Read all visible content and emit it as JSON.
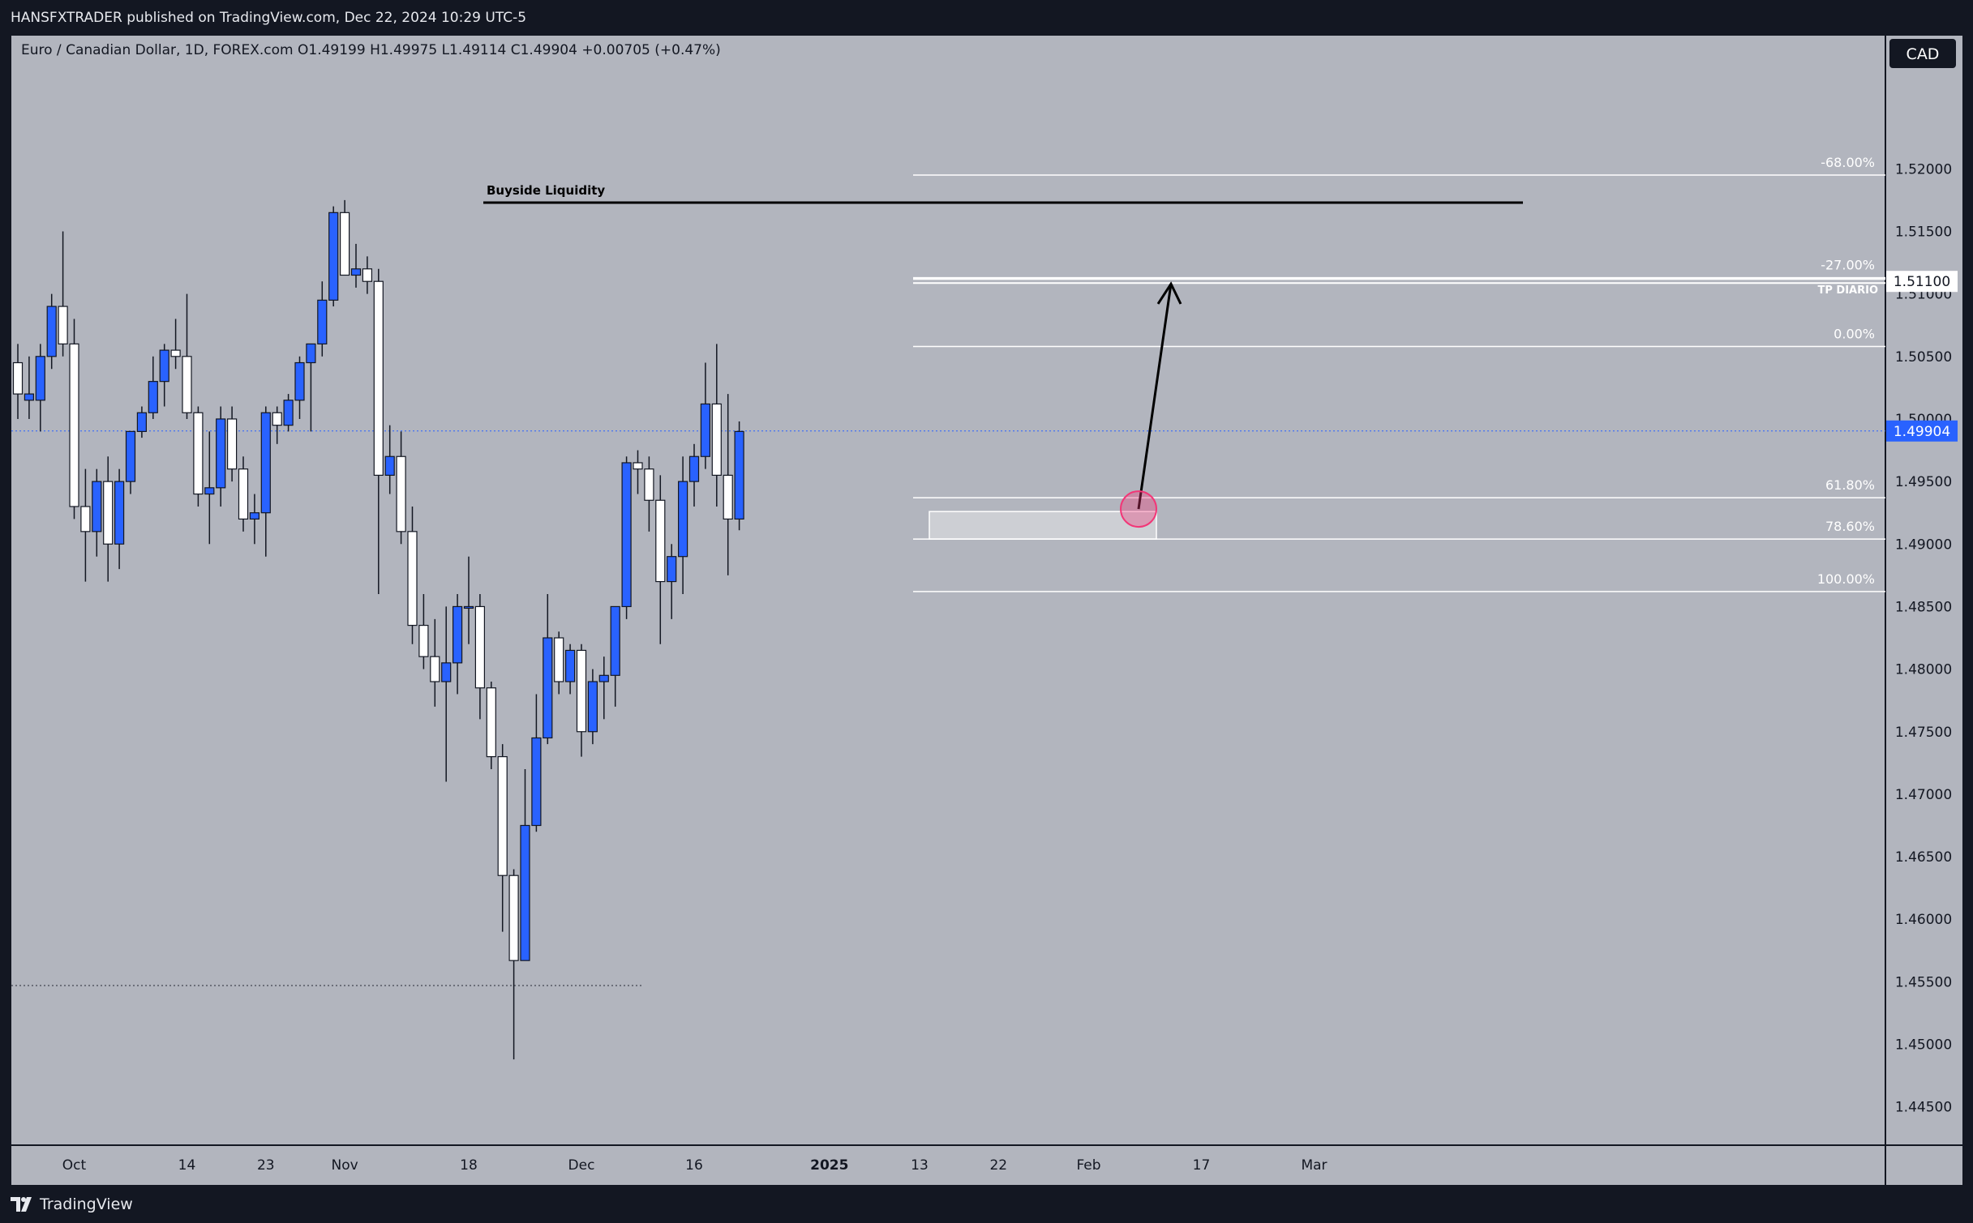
{
  "header": {
    "publish_line": "HANSFXTRADER published on TradingView.com, Dec 22, 2024 10:29 UTC-5"
  },
  "legend": {
    "text": "Euro / Canadian Dollar, 1D, FOREX.com  O1.49199  H1.49975  L1.49114  C1.49904  +0.00705 (+0.47%)"
  },
  "footer": {
    "brand": "TradingView"
  },
  "colors": {
    "background": "#b2b5be",
    "up_candle": "#2962ff",
    "down_candle": "#ffffff",
    "current_price_badge": "#2962ff"
  },
  "chart_data": {
    "type": "candlestick",
    "symbol": "EURCAD",
    "currency_badge": "CAD",
    "current_price": 1.49904,
    "current_price_label": "1.49904",
    "ylim": [
      1.442,
      1.53
    ],
    "y_ticks": [
      "1.52000",
      "1.51500",
      "1.51000",
      "1.50500",
      "1.50000",
      "1.49500",
      "1.49000",
      "1.48500",
      "1.48000",
      "1.47500",
      "1.47000",
      "1.46500",
      "1.46000",
      "1.45500",
      "1.45000",
      "1.44500"
    ],
    "x_ticks": [
      {
        "label": "Oct",
        "bar": 5
      },
      {
        "label": "14",
        "bar": 15
      },
      {
        "label": "23",
        "bar": 22
      },
      {
        "label": "Nov",
        "bar": 29
      },
      {
        "label": "18",
        "bar": 40
      },
      {
        "label": "Dec",
        "bar": 50
      },
      {
        "label": "16",
        "bar": 60
      },
      {
        "label": "2025",
        "bar": 72,
        "bold": true
      },
      {
        "label": "13",
        "bar": 80
      },
      {
        "label": "22",
        "bar": 87
      },
      {
        "label": "Feb",
        "bar": 95
      },
      {
        "label": "17",
        "bar": 105
      },
      {
        "label": "Mar",
        "bar": 115
      }
    ],
    "candles": [
      [
        1.5045,
        1.506,
        1.5,
        1.502
      ],
      [
        1.5015,
        1.505,
        1.5,
        1.502
      ],
      [
        1.5015,
        1.506,
        1.499,
        1.505
      ],
      [
        1.505,
        1.51,
        1.504,
        1.509
      ],
      [
        1.509,
        1.515,
        1.505,
        1.506
      ],
      [
        1.506,
        1.508,
        1.492,
        1.493
      ],
      [
        1.493,
        1.496,
        1.487,
        1.491
      ],
      [
        1.491,
        1.496,
        1.489,
        1.495
      ],
      [
        1.495,
        1.497,
        1.487,
        1.49
      ],
      [
        1.49,
        1.496,
        1.488,
        1.495
      ],
      [
        1.495,
        1.499,
        1.494,
        1.499
      ],
      [
        1.499,
        1.501,
        1.4985,
        1.5005
      ],
      [
        1.5005,
        1.505,
        1.5,
        1.503
      ],
      [
        1.503,
        1.506,
        1.501,
        1.5055
      ],
      [
        1.5055,
        1.508,
        1.504,
        1.505
      ],
      [
        1.505,
        1.51,
        1.5,
        1.5005
      ],
      [
        1.5005,
        1.501,
        1.493,
        1.494
      ],
      [
        1.494,
        1.499,
        1.49,
        1.4945
      ],
      [
        1.4945,
        1.501,
        1.493,
        1.5
      ],
      [
        1.5,
        1.501,
        1.495,
        1.496
      ],
      [
        1.496,
        1.497,
        1.491,
        1.492
      ],
      [
        1.492,
        1.494,
        1.49,
        1.4925
      ],
      [
        1.4925,
        1.501,
        1.489,
        1.5005
      ],
      [
        1.5005,
        1.501,
        1.498,
        1.4995
      ],
      [
        1.4995,
        1.502,
        1.499,
        1.5015
      ],
      [
        1.5015,
        1.505,
        1.5,
        1.5045
      ],
      [
        1.5045,
        1.506,
        1.499,
        1.506
      ],
      [
        1.506,
        1.511,
        1.505,
        1.5095
      ],
      [
        1.5095,
        1.517,
        1.509,
        1.5165
      ],
      [
        1.5165,
        1.5175,
        1.5115,
        1.5115
      ],
      [
        1.5115,
        1.514,
        1.5105,
        1.512
      ],
      [
        1.512,
        1.513,
        1.51,
        1.511
      ],
      [
        1.511,
        1.512,
        1.486,
        1.4955
      ],
      [
        1.4955,
        1.4995,
        1.494,
        1.497
      ],
      [
        1.497,
        1.499,
        1.49,
        1.491
      ],
      [
        1.491,
        1.493,
        1.482,
        1.4835
      ],
      [
        1.4835,
        1.486,
        1.48,
        1.481
      ],
      [
        1.481,
        1.484,
        1.477,
        1.479
      ],
      [
        1.479,
        1.485,
        1.471,
        1.4805
      ],
      [
        1.4805,
        1.486,
        1.478,
        1.485
      ],
      [
        1.485,
        1.489,
        1.482,
        1.485
      ],
      [
        1.485,
        1.486,
        1.476,
        1.4785
      ],
      [
        1.4785,
        1.479,
        1.472,
        1.473
      ],
      [
        1.473,
        1.474,
        1.459,
        1.4635
      ],
      [
        1.4635,
        1.464,
        1.4488,
        1.4567
      ],
      [
        1.4567,
        1.472,
        1.4567,
        1.4675
      ],
      [
        1.4675,
        1.478,
        1.467,
        1.4745
      ],
      [
        1.4745,
        1.486,
        1.474,
        1.4825
      ],
      [
        1.4825,
        1.483,
        1.478,
        1.479
      ],
      [
        1.479,
        1.482,
        1.478,
        1.4815
      ],
      [
        1.4815,
        1.482,
        1.473,
        1.475
      ],
      [
        1.475,
        1.48,
        1.474,
        1.479
      ],
      [
        1.479,
        1.481,
        1.476,
        1.4795
      ],
      [
        1.4795,
        1.485,
        1.477,
        1.485
      ],
      [
        1.485,
        1.497,
        1.484,
        1.4965
      ],
      [
        1.4965,
        1.4975,
        1.494,
        1.496
      ],
      [
        1.496,
        1.497,
        1.491,
        1.4935
      ],
      [
        1.4935,
        1.4955,
        1.482,
        1.487
      ],
      [
        1.487,
        1.49,
        1.484,
        1.489
      ],
      [
        1.489,
        1.497,
        1.486,
        1.495
      ],
      [
        1.495,
        1.498,
        1.493,
        1.497
      ],
      [
        1.497,
        1.5045,
        1.496,
        1.5012
      ],
      [
        1.5012,
        1.506,
        1.493,
        1.4955
      ],
      [
        1.4955,
        1.502,
        1.4875,
        1.492
      ],
      [
        1.492,
        1.4998,
        1.4911,
        1.499
      ]
    ],
    "annotations": {
      "buyside_liquidity": {
        "label": "Buyside Liquidity",
        "price": 1.5173
      },
      "tp_level": {
        "label": "TP DIARIO",
        "price": 1.511,
        "price_label": "1.51100"
      },
      "fib_levels": [
        {
          "label": "-68.00%",
          "price": 1.5195
        },
        {
          "label": "-27.00%",
          "price": 1.5113
        },
        {
          "label": "0.00%",
          "price": 1.5058
        },
        {
          "label": "61.80%",
          "price": 1.4937
        },
        {
          "label": "78.60%",
          "price": 1.4904
        },
        {
          "label": "100.00%",
          "price": 1.4862
        }
      ],
      "low_dotted_level": 1.4547
    }
  }
}
